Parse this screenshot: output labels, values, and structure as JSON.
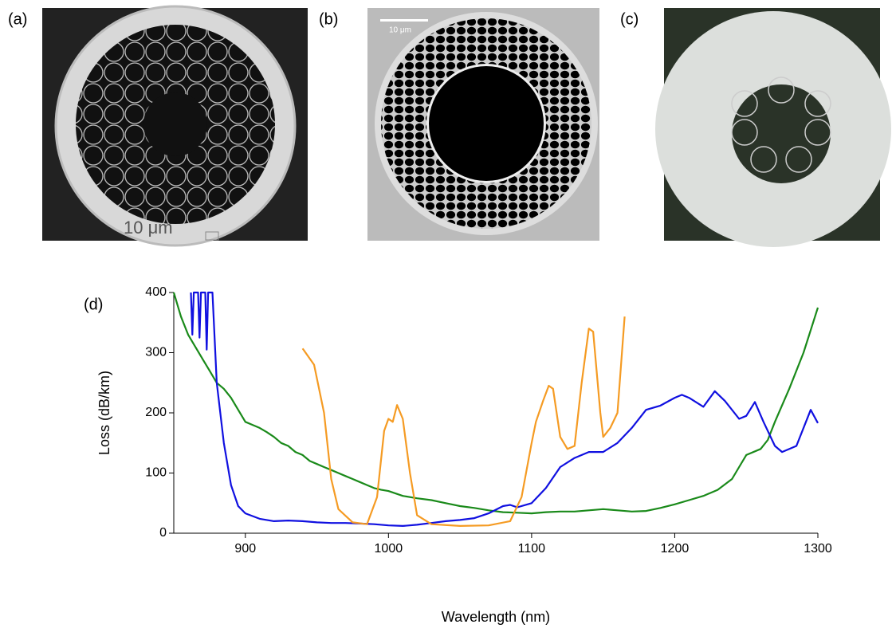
{
  "panels": [
    {
      "label": "(a)",
      "scale_bar": "10 μm"
    },
    {
      "label": "(b)",
      "scale_bar": "10 μm"
    },
    {
      "label": "(c)"
    }
  ],
  "chart_data": {
    "type": "line",
    "annotation": "(d)",
    "x_label": "Wavelength (nm)",
    "y_label": "Loss (dB/km)",
    "xlim": [
      850,
      1300
    ],
    "ylim": [
      0,
      400
    ],
    "xticks": [
      900,
      1000,
      1100,
      1200,
      1300
    ],
    "yticks": [
      0,
      100,
      200,
      300,
      400
    ],
    "series": [
      {
        "color": "#1a8a1a",
        "x": [
          850,
          855,
          860,
          865,
          870,
          875,
          880,
          885,
          890,
          895,
          900,
          905,
          910,
          915,
          920,
          925,
          930,
          935,
          940,
          945,
          950,
          955,
          960,
          965,
          970,
          975,
          980,
          985,
          990,
          995,
          1000,
          1010,
          1020,
          1030,
          1040,
          1050,
          1060,
          1070,
          1080,
          1090,
          1100,
          1110,
          1120,
          1130,
          1140,
          1150,
          1160,
          1170,
          1180,
          1190,
          1200,
          1210,
          1220,
          1230,
          1240,
          1245,
          1250,
          1260,
          1265,
          1270,
          1280,
          1290,
          1300
        ],
        "y": [
          400,
          360,
          330,
          310,
          290,
          270,
          250,
          240,
          225,
          205,
          185,
          180,
          175,
          168,
          160,
          150,
          145,
          135,
          130,
          120,
          115,
          110,
          105,
          100,
          95,
          90,
          85,
          80,
          75,
          72,
          70,
          62,
          58,
          55,
          50,
          45,
          42,
          38,
          35,
          34,
          33,
          35,
          36,
          36,
          38,
          40,
          38,
          36,
          37,
          42,
          48,
          55,
          62,
          72,
          90,
          110,
          130,
          140,
          155,
          185,
          240,
          300,
          375
        ]
      },
      {
        "color": "#1010e0",
        "x": [
          862,
          863,
          864,
          867,
          868,
          869,
          872,
          873,
          874,
          877,
          880,
          885,
          890,
          895,
          900,
          910,
          920,
          930,
          940,
          950,
          960,
          970,
          980,
          990,
          1000,
          1010,
          1020,
          1030,
          1040,
          1050,
          1060,
          1070,
          1080,
          1085,
          1090,
          1100,
          1110,
          1120,
          1130,
          1140,
          1150,
          1160,
          1170,
          1180,
          1190,
          1200,
          1205,
          1210,
          1220,
          1228,
          1235,
          1245,
          1250,
          1256,
          1262,
          1270,
          1275,
          1285,
          1295,
          1300
        ],
        "y": [
          400,
          330,
          400,
          400,
          325,
          400,
          400,
          305,
          400,
          400,
          250,
          150,
          80,
          45,
          33,
          24,
          20,
          21,
          20,
          18,
          17,
          17,
          16,
          15,
          13,
          12,
          14,
          17,
          20,
          22,
          25,
          33,
          45,
          47,
          43,
          50,
          75,
          110,
          125,
          135,
          135,
          150,
          175,
          205,
          212,
          225,
          230,
          225,
          210,
          236,
          220,
          190,
          195,
          218,
          185,
          145,
          135,
          145,
          205,
          183
        ]
      },
      {
        "color": "#f59b23",
        "x": [
          940,
          948,
          955,
          960,
          965,
          975,
          985,
          992,
          997,
          1000,
          1003,
          1006,
          1010,
          1015,
          1020,
          1030,
          1050,
          1070,
          1085,
          1093,
          1100,
          1103,
          1108,
          1112,
          1115,
          1120,
          1125,
          1130,
          1135,
          1140,
          1143,
          1148,
          1150,
          1155,
          1160,
          1165
        ],
        "y": [
          307,
          280,
          200,
          90,
          40,
          18,
          15,
          60,
          170,
          190,
          185,
          213,
          190,
          100,
          30,
          15,
          12,
          13,
          20,
          60,
          150,
          185,
          220,
          245,
          240,
          160,
          140,
          145,
          250,
          340,
          335,
          200,
          160,
          175,
          200,
          360
        ]
      }
    ]
  }
}
